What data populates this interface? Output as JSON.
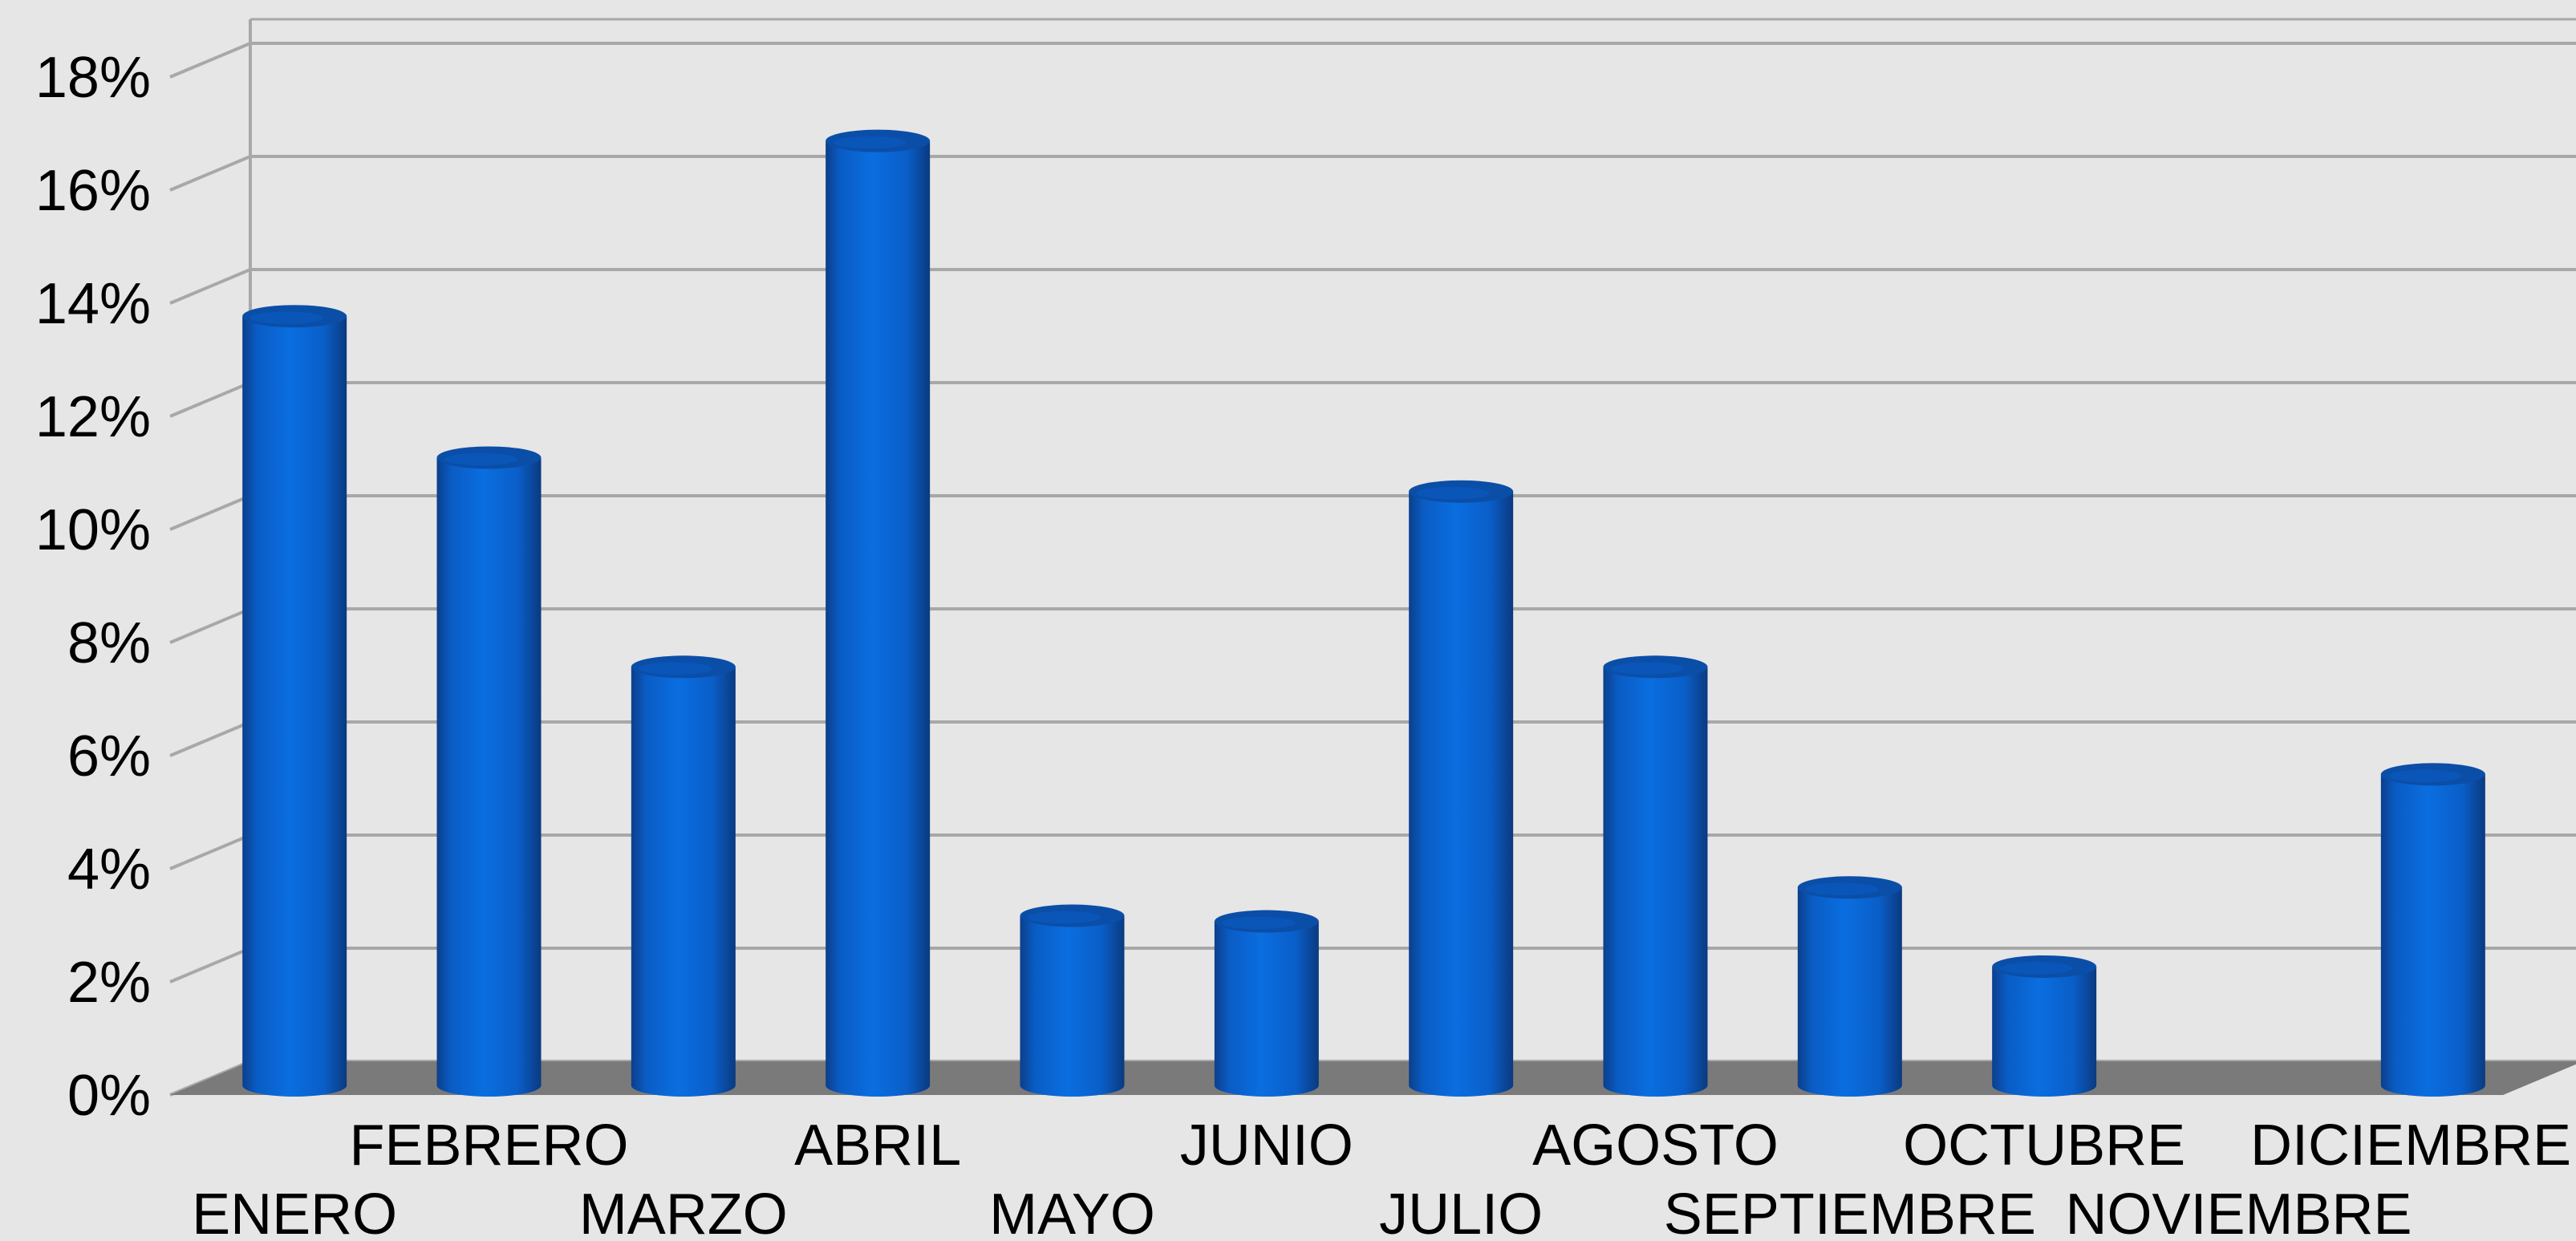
{
  "chart_data": {
    "type": "bar",
    "categories": [
      "ENERO",
      "FEBRERO",
      "MARZO",
      "ABRIL",
      "MAYO",
      "JUNIO",
      "JULIO",
      "AGOSTO",
      "SEPTIEMBRE",
      "OCTUBRE",
      "NOVIEMBRE",
      "DICIEMBRE"
    ],
    "series": [
      {
        "values": [
          13.6,
          11.1,
          7.4,
          16.7,
          3.0,
          2.9,
          10.5,
          7.4,
          3.5,
          2.1,
          0,
          5.5
        ]
      }
    ],
    "ylim": [
      0,
      18
    ],
    "yticks": [
      0,
      2,
      4,
      6,
      8,
      10,
      12,
      14,
      16,
      18
    ],
    "ytick_labels": [
      "0%",
      "2%",
      "4%",
      "6%",
      "8%",
      "10%",
      "12%",
      "14%",
      "16%",
      "18%"
    ],
    "grid": true,
    "legend": "none",
    "style": "3d-cylinder",
    "colors": {
      "bar": "#0a6ad6",
      "bar_dark": "#0b3f8c",
      "bar_top": "#0b4ea8",
      "floor": "#7a7a7a",
      "grid": "#a8a8a8",
      "background": "#e6e6e6"
    }
  }
}
